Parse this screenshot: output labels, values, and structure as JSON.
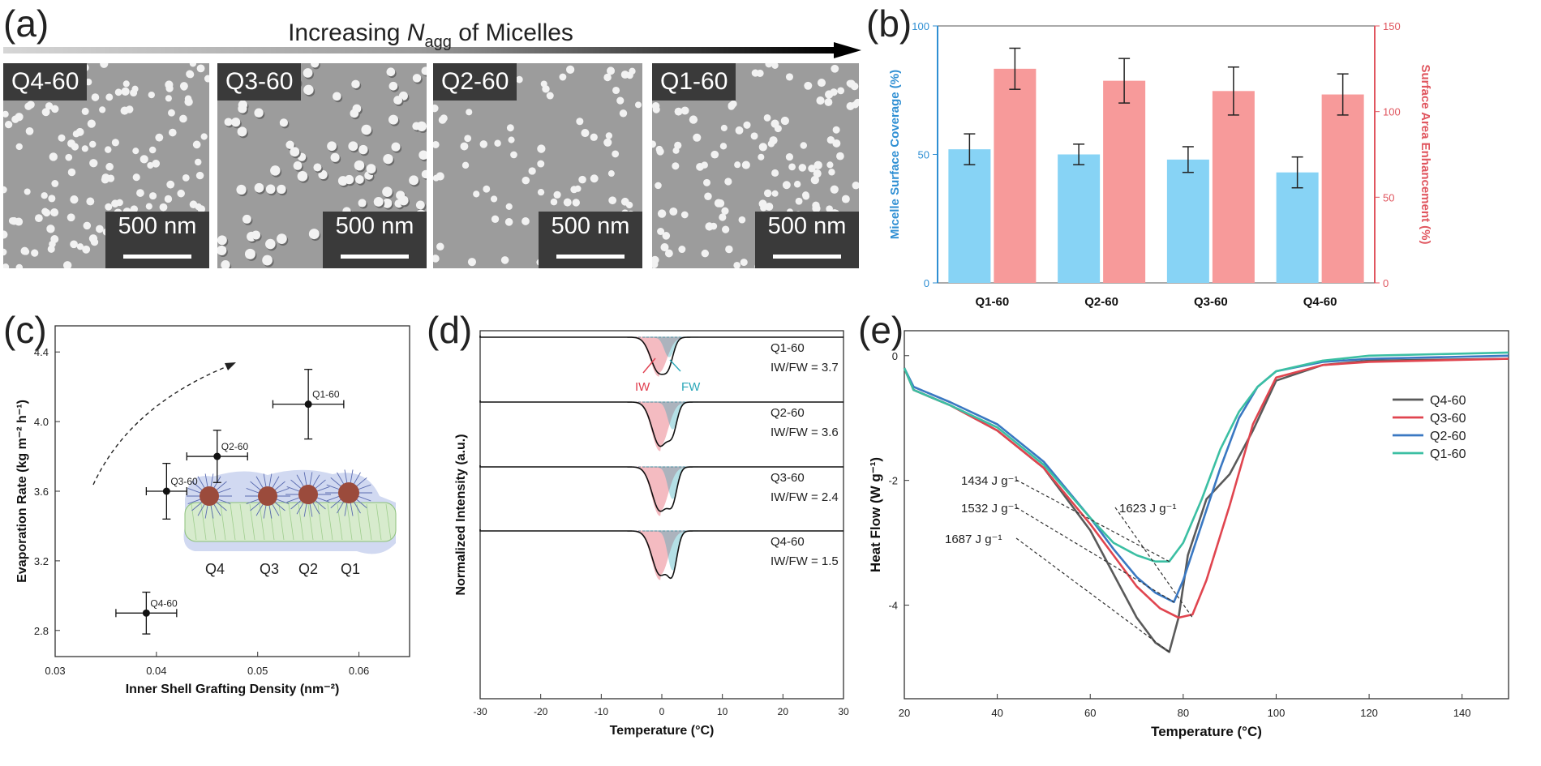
{
  "panel_labels": [
    "(a)",
    "(b)",
    "(c)",
    "(d)",
    "(e)"
  ],
  "panel_a": {
    "arrow_title_prefix": "Increasing ",
    "arrow_title_var": "N",
    "arrow_title_sub": "agg",
    "arrow_title_suffix": " of Micelles",
    "images": [
      {
        "label": "Q4-60",
        "scale": "500 nm"
      },
      {
        "label": "Q3-60",
        "scale": "500 nm"
      },
      {
        "label": "Q2-60",
        "scale": "500 nm"
      },
      {
        "label": "Q1-60",
        "scale": "500 nm"
      }
    ],
    "colors": {
      "sem_bg": "#9c9c9c",
      "particle": "#f2f2f2"
    }
  },
  "chart_data": [
    {
      "panel": "(b)",
      "type": "bar",
      "categories": [
        "Q1-60",
        "Q2-60",
        "Q3-60",
        "Q4-60"
      ],
      "ylabel": "Micelle Surface Coverage (%)",
      "ylabel_right": "Surface Area Enhancement (%)",
      "ylim": [
        0,
        100
      ],
      "ylim_right": [
        0,
        150
      ],
      "yticks": [
        "0",
        "50",
        "100"
      ],
      "yticks_right": [
        "0",
        "50",
        "100",
        "150"
      ],
      "series": [
        {
          "axis": "left",
          "color": "#87d3f5",
          "values": [
            52,
            50,
            48,
            43
          ],
          "errors": [
            6,
            4,
            5,
            6
          ]
        },
        {
          "axis": "right",
          "color": "#f79a9a",
          "values": [
            125,
            118,
            112,
            110
          ],
          "errors": [
            12,
            13,
            14,
            12
          ]
        }
      ],
      "axis_colors": {
        "left": "#2f8fd3",
        "right": "#e0565f"
      }
    },
    {
      "panel": "(c)",
      "type": "scatter",
      "xlabel": "Inner Shell Grafting Density (nm⁻²)",
      "ylabel": "Evaporation Rate (kg m⁻² h⁻¹)",
      "xlim": [
        0.03,
        0.065
      ],
      "ylim": [
        2.65,
        4.55
      ],
      "xticks": [
        "0.03",
        "0.04",
        "0.05",
        "0.06"
      ],
      "yticks": [
        "2.8",
        "3.2",
        "3.6",
        "4.0",
        "4.4"
      ],
      "points": [
        {
          "label": "Q4-60",
          "x": 0.039,
          "y": 2.9,
          "xerr": 0.003,
          "yerr": 0.12
        },
        {
          "label": "Q3-60",
          "x": 0.041,
          "y": 3.6,
          "xerr": 0.002,
          "yerr": 0.16
        },
        {
          "label": "Q2-60",
          "x": 0.046,
          "y": 3.8,
          "xerr": 0.003,
          "yerr": 0.15
        },
        {
          "label": "Q1-60",
          "x": 0.055,
          "y": 4.1,
          "xerr": 0.0035,
          "yerr": 0.2
        }
      ],
      "inset_labels": [
        "Q4",
        "Q3",
        "Q2",
        "Q1"
      ]
    },
    {
      "panel": "(d)",
      "type": "line",
      "xlabel": "Temperature (°C)",
      "ylabel": "Normalized Intensity (a.u.)",
      "xlim": [
        -30,
        30
      ],
      "xticks": [
        "-30",
        "-20",
        "-10",
        "0",
        "10",
        "20",
        "30"
      ],
      "peak_labels": {
        "iw": "IW",
        "fw": "FW"
      },
      "series": [
        {
          "name": "Q1-60",
          "ratio": "IW/FW = 3.7",
          "iw_center": -0.5,
          "iw_depth": 0.8,
          "fw_center": 1.2,
          "fw_depth": 0.4
        },
        {
          "name": "Q2-60",
          "ratio": "IW/FW = 3.6",
          "iw_center": -0.3,
          "iw_depth": 1.0,
          "fw_center": 1.8,
          "fw_depth": 0.55
        },
        {
          "name": "Q3-60",
          "ratio": "IW/FW = 2.4",
          "iw_center": -0.3,
          "iw_depth": 1.0,
          "fw_center": 1.8,
          "fw_depth": 0.65
        },
        {
          "name": "Q4-60",
          "ratio": "IW/FW = 1.5",
          "iw_center": -0.3,
          "iw_depth": 1.0,
          "fw_center": 1.8,
          "fw_depth": 0.8
        }
      ],
      "colors": {
        "iw": "#e04050",
        "fw": "#2aa7b8",
        "total": "#111111"
      }
    },
    {
      "panel": "(e)",
      "type": "line",
      "xlabel": "Temperature (°C)",
      "ylabel": "Heat Flow (W g⁻¹)",
      "xlim": [
        20,
        150
      ],
      "ylim": [
        -5.5,
        0.4
      ],
      "xticks": [
        "20",
        "40",
        "60",
        "80",
        "100",
        "120",
        "140"
      ],
      "yticks": [
        "-4",
        "-2",
        "0"
      ],
      "series": [
        {
          "name": "Q4-60",
          "color": "#5a5a5a",
          "x": [
            20,
            22,
            30,
            40,
            50,
            60,
            65,
            70,
            74,
            77,
            79,
            81,
            85,
            90,
            95,
            100,
            110,
            120,
            150
          ],
          "y": [
            -0.2,
            -0.55,
            -0.8,
            -1.2,
            -1.8,
            -2.8,
            -3.5,
            -4.2,
            -4.6,
            -4.75,
            -4.2,
            -3.2,
            -2.3,
            -1.9,
            -1.2,
            -0.4,
            -0.15,
            -0.08,
            -0.05
          ]
        },
        {
          "name": "Q3-60",
          "color": "#e0454f",
          "x": [
            20,
            22,
            30,
            40,
            50,
            60,
            65,
            70,
            75,
            79,
            82,
            85,
            90,
            95,
            100,
            110,
            120,
            150
          ],
          "y": [
            -0.2,
            -0.55,
            -0.8,
            -1.2,
            -1.8,
            -2.7,
            -3.2,
            -3.7,
            -4.05,
            -4.2,
            -4.15,
            -3.6,
            -2.4,
            -1.1,
            -0.35,
            -0.15,
            -0.1,
            -0.05
          ]
        },
        {
          "name": "Q2-60",
          "color": "#3a78c2",
          "x": [
            20,
            22,
            30,
            40,
            50,
            60,
            65,
            70,
            74,
            78,
            80,
            84,
            88,
            92,
            96,
            100,
            110,
            120,
            150
          ],
          "y": [
            -0.2,
            -0.5,
            -0.75,
            -1.1,
            -1.7,
            -2.6,
            -3.1,
            -3.55,
            -3.8,
            -3.95,
            -3.6,
            -2.7,
            -1.8,
            -1.0,
            -0.5,
            -0.25,
            -0.1,
            -0.05,
            0.0
          ]
        },
        {
          "name": "Q1-60",
          "color": "#3bbfa3",
          "x": [
            20,
            22,
            30,
            40,
            50,
            60,
            65,
            70,
            74,
            77,
            80,
            84,
            88,
            92,
            96,
            100,
            110,
            120,
            150
          ],
          "y": [
            -0.2,
            -0.55,
            -0.8,
            -1.15,
            -1.75,
            -2.6,
            -3.0,
            -3.2,
            -3.3,
            -3.3,
            -3.0,
            -2.3,
            -1.5,
            -0.9,
            -0.5,
            -0.25,
            -0.08,
            0.0,
            0.05
          ]
        }
      ],
      "annotations": [
        {
          "text": "1434 J g⁻¹",
          "target_series": "Q1-60"
        },
        {
          "text": "1532 J g⁻¹",
          "target_series": "Q2-60"
        },
        {
          "text": "1623 J g⁻¹",
          "target_series": "Q3-60"
        },
        {
          "text": "1687 J g⁻¹",
          "target_series": "Q4-60"
        }
      ]
    }
  ]
}
